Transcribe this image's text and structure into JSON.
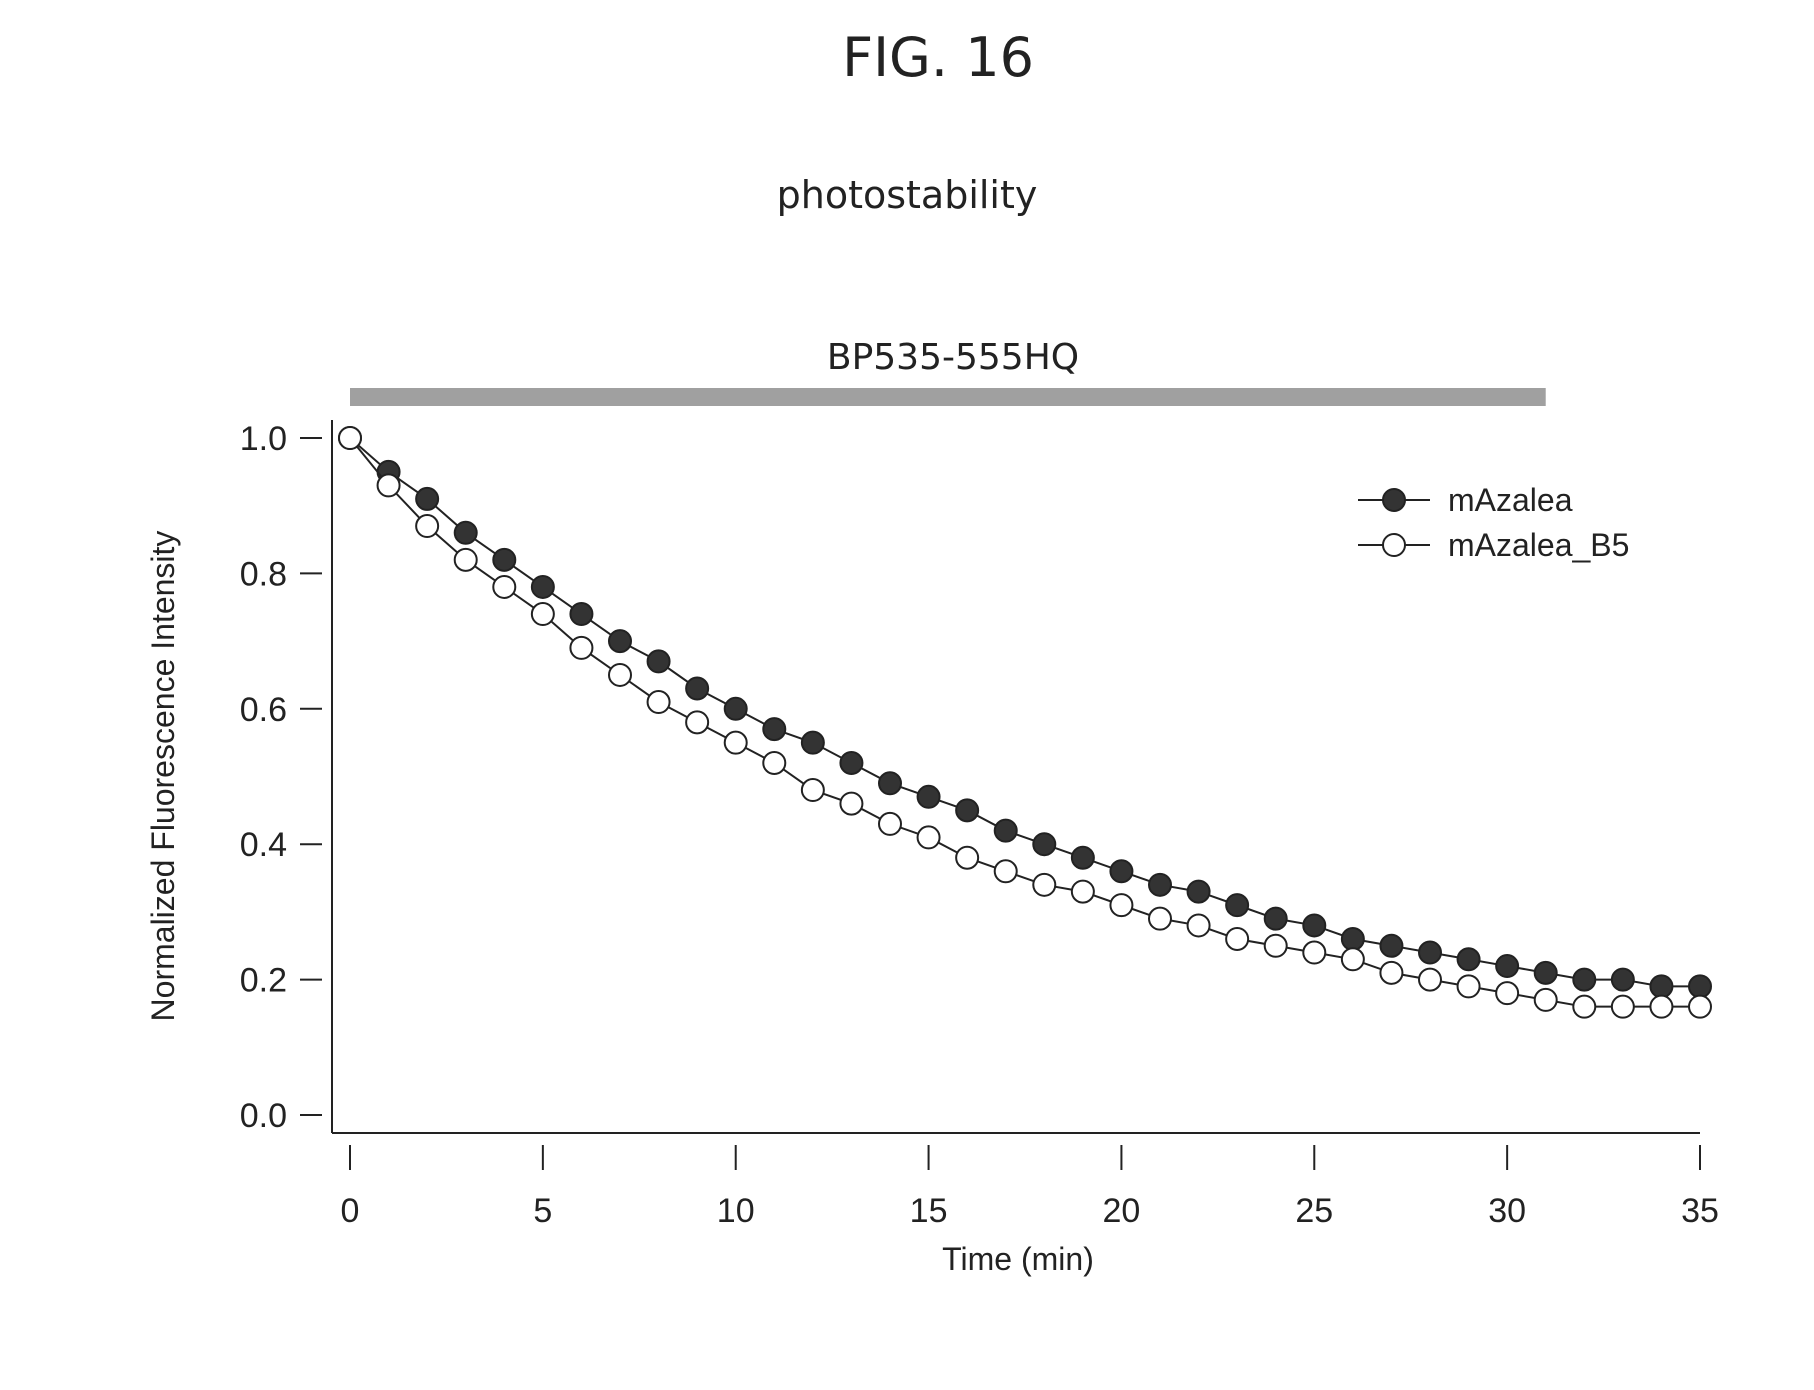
{
  "figure": {
    "label": "FIG. 16"
  },
  "chart_data": {
    "type": "line",
    "title": "photostability",
    "annotation": {
      "text": "BP535-555HQ",
      "bar_color": "#a0a0a0",
      "x_range": [
        0,
        31
      ]
    },
    "xlabel": "Time (min)",
    "ylabel": "Normalized Fluorescence Intensity",
    "xlim": [
      0,
      35
    ],
    "ylim": [
      0,
      1
    ],
    "xticks": [
      "0",
      "5",
      "10",
      "15",
      "20",
      "25",
      "30",
      "35"
    ],
    "yticks": [
      "0.0",
      "0.2",
      "0.4",
      "0.6",
      "0.8",
      "1.0"
    ],
    "grid": false,
    "legend_position": "top-right",
    "x": [
      0,
      1,
      2,
      3,
      4,
      5,
      6,
      7,
      8,
      9,
      10,
      11,
      12,
      13,
      14,
      15,
      16,
      17,
      18,
      19,
      20,
      21,
      22,
      23,
      24,
      25,
      26,
      27,
      28,
      29,
      30,
      31,
      32,
      33,
      34,
      35
    ],
    "series": [
      {
        "name": "mAzalea",
        "marker": "filled-circle",
        "color": "#333333",
        "values": [
          1.0,
          0.95,
          0.91,
          0.86,
          0.82,
          0.78,
          0.74,
          0.7,
          0.67,
          0.63,
          0.6,
          0.57,
          0.55,
          0.52,
          0.49,
          0.47,
          0.45,
          0.42,
          0.4,
          0.38,
          0.36,
          0.34,
          0.33,
          0.31,
          0.29,
          0.28,
          0.26,
          0.25,
          0.24,
          0.23,
          0.22,
          0.21,
          0.2,
          0.2,
          0.19,
          0.19
        ]
      },
      {
        "name": "mAzalea_B5",
        "marker": "open-circle",
        "color": "#333333",
        "values": [
          1.0,
          0.93,
          0.87,
          0.82,
          0.78,
          0.74,
          0.69,
          0.65,
          0.61,
          0.58,
          0.55,
          0.52,
          0.48,
          0.46,
          0.43,
          0.41,
          0.38,
          0.36,
          0.34,
          0.33,
          0.31,
          0.29,
          0.28,
          0.26,
          0.25,
          0.24,
          0.23,
          0.21,
          0.2,
          0.19,
          0.18,
          0.17,
          0.16,
          0.16,
          0.16,
          0.16
        ]
      }
    ]
  }
}
